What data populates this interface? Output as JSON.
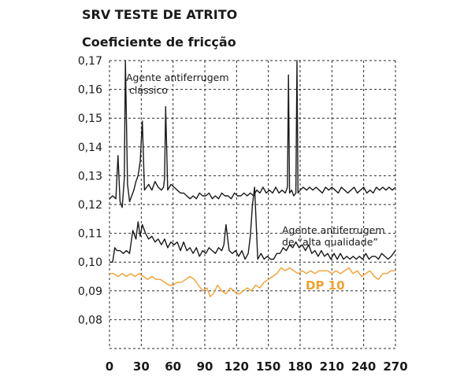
{
  "chart_data": {
    "type": "line",
    "title": "SRV TESTE DE ATRITO",
    "ylabel": "Coeficiente de fricção",
    "xlabel": "",
    "xlim": [
      0,
      270
    ],
    "ylim": [
      0.07,
      0.17
    ],
    "x_ticks": [
      "0",
      "30",
      "60",
      "90",
      "120",
      "150",
      "180",
      "210",
      "240",
      "270"
    ],
    "x_tick_values": [
      0,
      30,
      60,
      90,
      120,
      150,
      180,
      210,
      240,
      270
    ],
    "y_ticks": [
      "0,08",
      "0,09",
      "0,10",
      "0,11",
      "0,12",
      "0,13",
      "0,14",
      "0,15",
      "0,16",
      "0,17"
    ],
    "y_tick_values": [
      0.08,
      0.09,
      0.1,
      0.11,
      0.12,
      0.13,
      0.14,
      0.15,
      0.16,
      0.17
    ],
    "grid": true,
    "annotations": [
      {
        "lines": [
          "Agente antiferrugem",
          "  clássico"
        ],
        "color": "#1a1a1a"
      },
      {
        "lines": [
          "Agente antiferrugem",
          "de “alta qualidade”"
        ],
        "color": "#1a1a1a"
      },
      {
        "lines": [
          "DP 10"
        ],
        "color": "#f0a030"
      }
    ],
    "series": [
      {
        "color": "#1a1a1a",
        "x": [
          0,
          3,
          6,
          8,
          10,
          12,
          14,
          15,
          17,
          19,
          21,
          23,
          25,
          27,
          29,
          31,
          33,
          35,
          37,
          40,
          43,
          46,
          49,
          51,
          52,
          53,
          55,
          58,
          61,
          64,
          67,
          70,
          73,
          76,
          79,
          82,
          85,
          88,
          91,
          94,
          97,
          100,
          103,
          106,
          109,
          112,
          115,
          118,
          121,
          124,
          127,
          130,
          133,
          136,
          139,
          142,
          145,
          148,
          151,
          154,
          157,
          160,
          163,
          166,
          168,
          169,
          170,
          172,
          174,
          176,
          177,
          178,
          180,
          183,
          186,
          189,
          192,
          195,
          198,
          201,
          204,
          207,
          210,
          213,
          216,
          219,
          222,
          225,
          228,
          231,
          234,
          237,
          240,
          243,
          246,
          249,
          252,
          255,
          258,
          261,
          264,
          267,
          270
        ],
        "values": [
          0.122,
          0.123,
          0.122,
          0.137,
          0.121,
          0.119,
          0.129,
          0.17,
          0.127,
          0.121,
          0.123,
          0.125,
          0.128,
          0.13,
          0.135,
          0.149,
          0.125,
          0.126,
          0.127,
          0.125,
          0.128,
          0.126,
          0.125,
          0.126,
          0.129,
          0.154,
          0.125,
          0.127,
          0.126,
          0.125,
          0.124,
          0.124,
          0.123,
          0.122,
          0.123,
          0.122,
          0.124,
          0.123,
          0.123,
          0.124,
          0.122,
          0.123,
          0.122,
          0.124,
          0.123,
          0.123,
          0.122,
          0.124,
          0.123,
          0.123,
          0.124,
          0.123,
          0.124,
          0.123,
          0.125,
          0.124,
          0.126,
          0.124,
          0.125,
          0.124,
          0.126,
          0.124,
          0.125,
          0.124,
          0.126,
          0.165,
          0.124,
          0.125,
          0.123,
          0.124,
          0.17,
          0.124,
          0.125,
          0.126,
          0.125,
          0.126,
          0.125,
          0.126,
          0.125,
          0.124,
          0.126,
          0.125,
          0.126,
          0.125,
          0.124,
          0.126,
          0.125,
          0.124,
          0.125,
          0.126,
          0.124,
          0.125,
          0.126,
          0.124,
          0.125,
          0.124,
          0.126,
          0.125,
          0.126,
          0.125,
          0.126,
          0.125,
          0.126
        ]
      },
      {
        "color": "#1a1a1a",
        "x": [
          0,
          3,
          5,
          7,
          10,
          13,
          16,
          19,
          22,
          25,
          27,
          29,
          31,
          34,
          37,
          40,
          43,
          46,
          49,
          52,
          55,
          58,
          61,
          64,
          67,
          70,
          73,
          76,
          79,
          82,
          85,
          88,
          91,
          94,
          97,
          100,
          103,
          106,
          108,
          110,
          113,
          116,
          119,
          122,
          125,
          128,
          131,
          133,
          135,
          137,
          138,
          140,
          143,
          146,
          149,
          152,
          155,
          158,
          161,
          164,
          167,
          170,
          173,
          176,
          179,
          182,
          185,
          188,
          191,
          194,
          197,
          200,
          203,
          206,
          209,
          212,
          215,
          218,
          221,
          224,
          227,
          230,
          233,
          236,
          239,
          242,
          245,
          248,
          251,
          254,
          257,
          260,
          263,
          266,
          270
        ],
        "values": [
          0.1,
          0.1,
          0.105,
          0.104,
          0.104,
          0.103,
          0.104,
          0.103,
          0.111,
          0.108,
          0.114,
          0.109,
          0.113,
          0.11,
          0.108,
          0.109,
          0.107,
          0.108,
          0.106,
          0.108,
          0.105,
          0.107,
          0.106,
          0.107,
          0.104,
          0.107,
          0.104,
          0.105,
          0.103,
          0.105,
          0.102,
          0.104,
          0.103,
          0.105,
          0.104,
          0.103,
          0.105,
          0.104,
          0.106,
          0.113,
          0.104,
          0.103,
          0.104,
          0.102,
          0.104,
          0.101,
          0.103,
          0.109,
          0.12,
          0.126,
          0.118,
          0.101,
          0.103,
          0.101,
          0.102,
          0.101,
          0.101,
          0.103,
          0.103,
          0.105,
          0.104,
          0.106,
          0.105,
          0.107,
          0.105,
          0.106,
          0.104,
          0.106,
          0.103,
          0.104,
          0.102,
          0.104,
          0.102,
          0.103,
          0.101,
          0.103,
          0.101,
          0.103,
          0.101,
          0.102,
          0.101,
          0.102,
          0.101,
          0.102,
          0.101,
          0.103,
          0.101,
          0.102,
          0.102,
          0.101,
          0.103,
          0.102,
          0.101,
          0.102,
          0.104
        ]
      },
      {
        "color": "#f0a030",
        "x": [
          0,
          4,
          8,
          12,
          16,
          20,
          24,
          28,
          32,
          36,
          40,
          44,
          48,
          52,
          56,
          60,
          64,
          68,
          72,
          76,
          80,
          84,
          88,
          92,
          95,
          98,
          102,
          106,
          110,
          114,
          118,
          120,
          123,
          126,
          130,
          134,
          138,
          142,
          146,
          150,
          154,
          158,
          162,
          166,
          170,
          174,
          178,
          182,
          186,
          190,
          194,
          198,
          202,
          206,
          210,
          214,
          218,
          222,
          226,
          230,
          234,
          238,
          242,
          246,
          250,
          254,
          258,
          262,
          266,
          270
        ],
        "values": [
          0.096,
          0.096,
          0.095,
          0.096,
          0.095,
          0.096,
          0.095,
          0.096,
          0.095,
          0.094,
          0.095,
          0.094,
          0.094,
          0.093,
          0.092,
          0.092,
          0.093,
          0.093,
          0.094,
          0.095,
          0.094,
          0.092,
          0.09,
          0.091,
          0.088,
          0.089,
          0.092,
          0.09,
          0.089,
          0.091,
          0.09,
          0.089,
          0.089,
          0.09,
          0.091,
          0.09,
          0.092,
          0.091,
          0.093,
          0.094,
          0.095,
          0.096,
          0.098,
          0.097,
          0.098,
          0.097,
          0.096,
          0.097,
          0.096,
          0.097,
          0.096,
          0.097,
          0.097,
          0.097,
          0.096,
          0.097,
          0.096,
          0.097,
          0.098,
          0.096,
          0.097,
          0.095,
          0.096,
          0.097,
          0.095,
          0.094,
          0.096,
          0.096,
          0.097,
          0.097
        ]
      }
    ]
  }
}
